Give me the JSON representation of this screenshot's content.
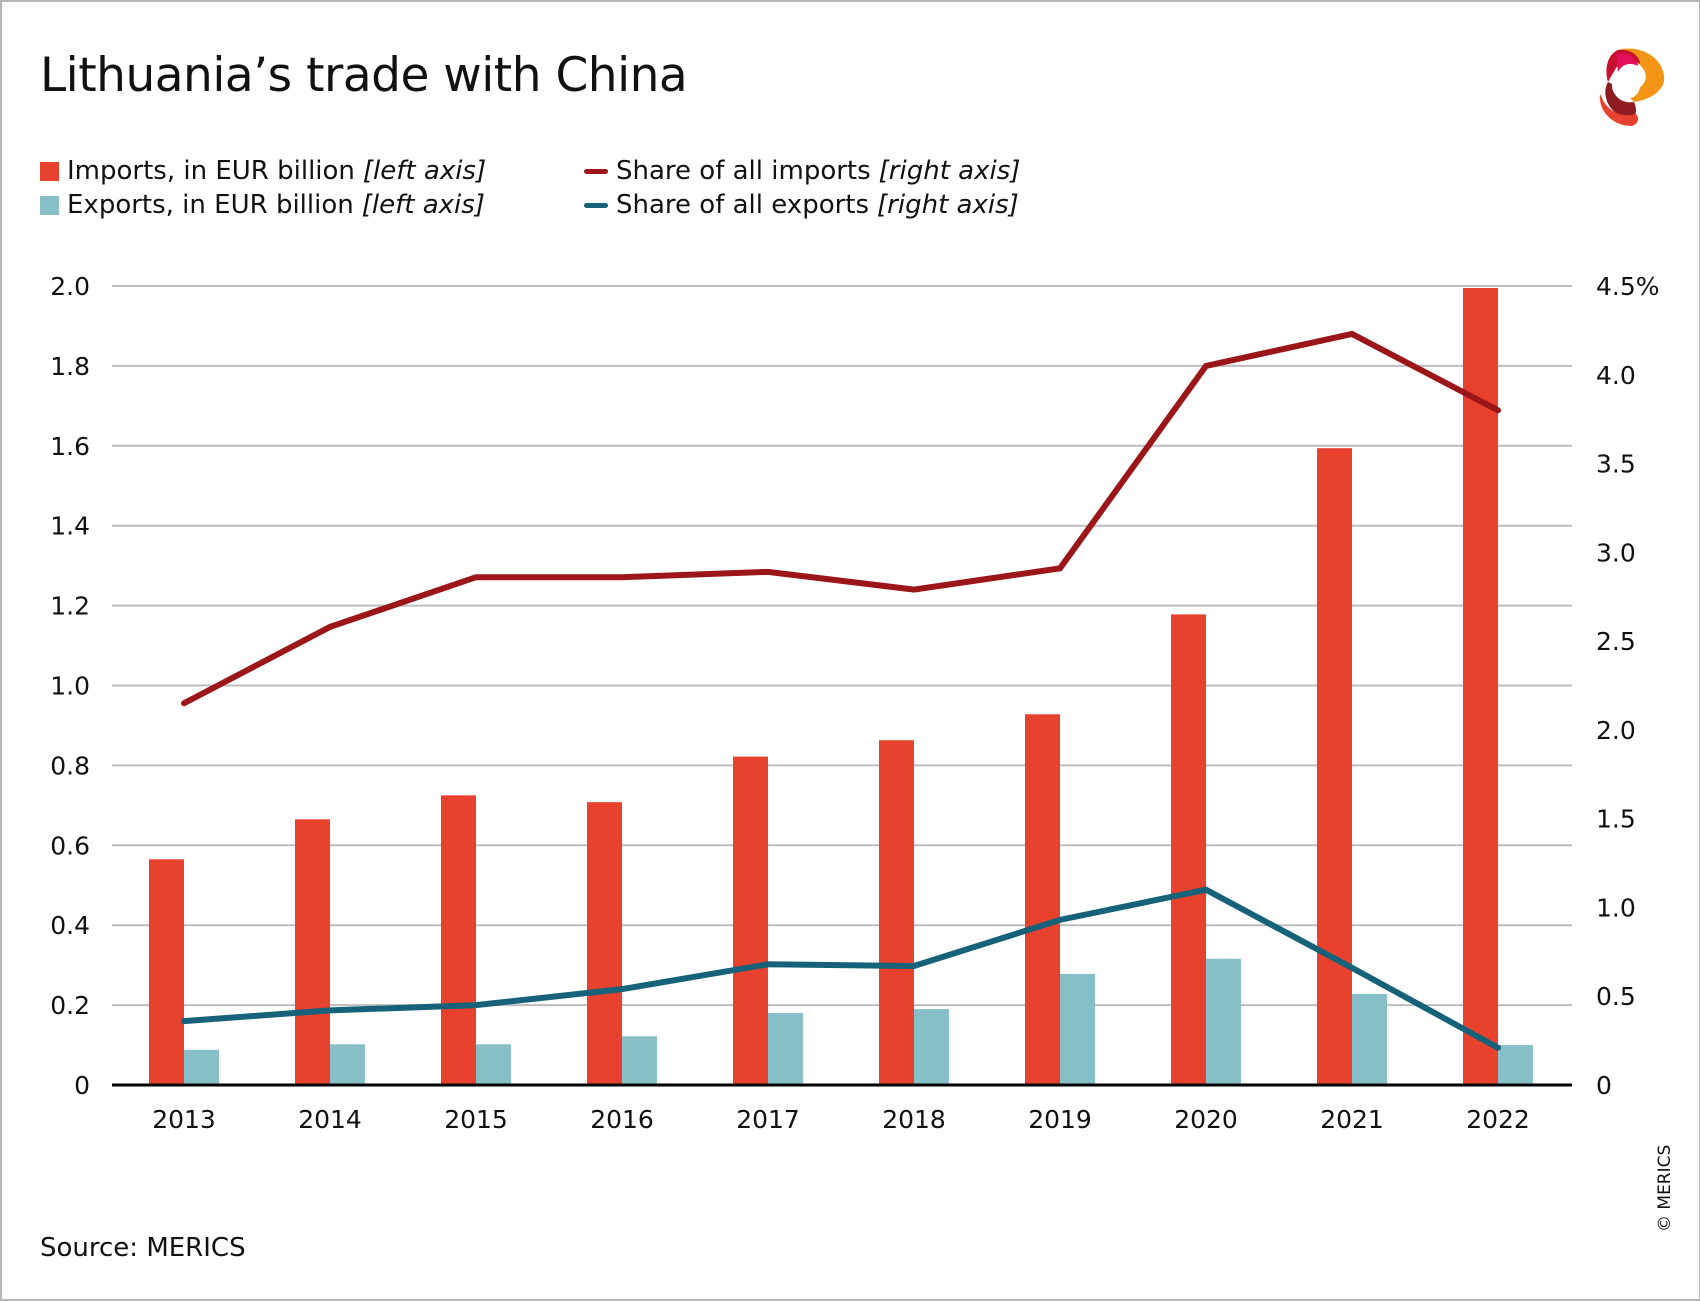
{
  "title": "Lithuania’s trade with China",
  "source": "Source: MERICS",
  "copyright": "© MERICS",
  "logo": "MERICS",
  "legend": [
    {
      "label": "Imports, in EUR billion",
      "axis": "[left axis]",
      "color": "#e8412d",
      "kind": "bar"
    },
    {
      "label": "Exports, in EUR billion",
      "axis": "[left axis]",
      "color": "#86bfc8",
      "kind": "bar"
    },
    {
      "label": "Share of all imports",
      "axis": "[right axis]",
      "color": "#9b1519",
      "kind": "line"
    },
    {
      "label": "Share of all exports",
      "axis": "[right axis]",
      "color": "#15627a",
      "kind": "line"
    }
  ],
  "chart_data": {
    "type": "bar+line",
    "title": "Lithuania’s trade with China",
    "categories": [
      "2013",
      "2014",
      "2015",
      "2016",
      "2017",
      "2018",
      "2019",
      "2020",
      "2021",
      "2022"
    ],
    "series": [
      {
        "name": "Imports, in EUR billion",
        "axis": "left",
        "type": "bar",
        "color": "#e8412d",
        "values": [
          0.565,
          0.665,
          0.725,
          0.708,
          0.822,
          0.863,
          0.928,
          1.178,
          1.594,
          1.995
        ]
      },
      {
        "name": "Exports, in EUR billion",
        "axis": "left",
        "type": "bar",
        "color": "#86bfc8",
        "values": [
          0.088,
          0.102,
          0.102,
          0.122,
          0.18,
          0.19,
          0.278,
          0.316,
          0.228,
          0.1
        ]
      },
      {
        "name": "Share of all imports",
        "axis": "right",
        "type": "line",
        "color": "#9b1519",
        "values": [
          2.15,
          2.58,
          2.86,
          2.86,
          2.89,
          2.79,
          2.91,
          4.05,
          4.23,
          3.8
        ]
      },
      {
        "name": "Share of all exports",
        "axis": "right",
        "type": "line",
        "color": "#15627a",
        "values": [
          0.36,
          0.42,
          0.45,
          0.54,
          0.68,
          0.67,
          0.93,
          1.1,
          0.66,
          0.21
        ]
      }
    ],
    "left_axis": {
      "range": [
        0,
        2.0
      ],
      "ticks": [
        "0",
        "0.2",
        "0.4",
        "0.6",
        "0.8",
        "1.0",
        "1.2",
        "1.4",
        "1.6",
        "1.8",
        "2.0"
      ]
    },
    "right_axis": {
      "range": [
        0,
        4.5
      ],
      "ticks": [
        "0",
        "0.5",
        "1.0",
        "1.5",
        "2.0",
        "2.5",
        "3.0",
        "3.5",
        "4.0",
        "4.5%"
      ]
    },
    "grid": true,
    "legend_position": "top-left"
  }
}
